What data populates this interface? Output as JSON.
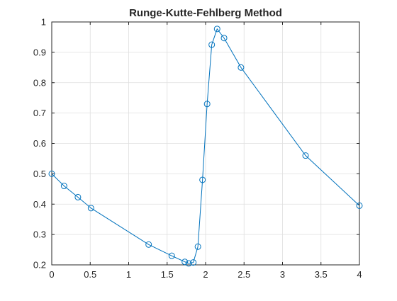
{
  "chart_data": {
    "type": "line",
    "title": "Runge-Kutte-Fehlberg Method",
    "xlabel": "",
    "ylabel": "",
    "xlim": [
      0,
      4
    ],
    "ylim": [
      0.2,
      1
    ],
    "grid": true,
    "legend": "none",
    "marker": "circle",
    "xticks": [
      0,
      0.5,
      1,
      1.5,
      2,
      2.5,
      3,
      3.5,
      4
    ],
    "xtick_labels": [
      "0",
      "0.5",
      "1",
      "1.5",
      "2",
      "2.5",
      "3",
      "3.5",
      "4"
    ],
    "yticks": [
      0.2,
      0.3,
      0.4,
      0.5,
      0.6,
      0.7,
      0.8,
      0.9,
      1
    ],
    "ytick_labels": [
      "0.2",
      "0.3",
      "0.4",
      "0.5",
      "0.6",
      "0.7",
      "0.8",
      "0.9",
      "1"
    ],
    "colors": {
      "series": "#0072BD",
      "axis": "#262626",
      "grid": "#dfdfdf"
    },
    "series": [
      {
        "x": [
          0,
          0.16,
          0.34,
          0.51,
          1.26,
          1.56,
          1.73,
          1.78,
          1.84,
          1.9,
          1.96,
          2.02,
          2.08,
          2.15,
          2.24,
          2.46,
          3.3,
          4
        ],
        "values": [
          0.5,
          0.46,
          0.423,
          0.387,
          0.267,
          0.23,
          0.21,
          0.205,
          0.208,
          0.26,
          0.48,
          0.73,
          0.925,
          0.977,
          0.947,
          0.85,
          0.56,
          0.395
        ]
      }
    ]
  }
}
